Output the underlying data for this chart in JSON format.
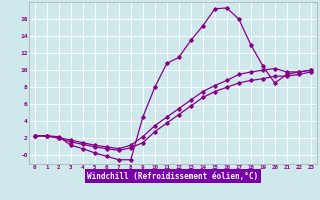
{
  "xlabel": "Windchill (Refroidissement éolien,°C)",
  "background_color": "#cfe8ec",
  "line_color": "#880088",
  "xlabel_bg": "#7700aa",
  "xlim": [
    -0.5,
    23.5
  ],
  "ylim": [
    -1.0,
    18.0
  ],
  "xticks": [
    0,
    1,
    2,
    3,
    4,
    5,
    6,
    7,
    8,
    9,
    10,
    11,
    12,
    13,
    14,
    15,
    16,
    17,
    18,
    19,
    20,
    21,
    22,
    23
  ],
  "yticks": [
    0,
    2,
    4,
    6,
    8,
    10,
    12,
    14,
    16
  ],
  "ytick_labels": [
    "-0",
    "2",
    "4",
    "6",
    "8",
    "10",
    "12",
    "14",
    "16"
  ],
  "curve1_x": [
    0,
    1,
    2,
    3,
    4,
    5,
    6,
    7,
    8,
    9,
    10,
    11,
    12,
    13,
    14,
    15,
    16,
    17,
    18,
    19,
    20,
    21,
    22,
    23
  ],
  "curve1_y": [
    2.3,
    2.3,
    2.2,
    1.2,
    0.8,
    0.3,
    -0.1,
    -0.5,
    -0.5,
    4.5,
    8.0,
    10.8,
    11.5,
    13.5,
    15.2,
    17.2,
    17.3,
    16.0,
    13.0,
    10.5,
    8.5,
    9.5,
    9.8,
    10.0
  ],
  "curve2_x": [
    0,
    1,
    2,
    3,
    4,
    5,
    6,
    7,
    8,
    9,
    10,
    11,
    12,
    13,
    14,
    15,
    16,
    17,
    18,
    19,
    20,
    21,
    22,
    23
  ],
  "curve2_y": [
    2.3,
    2.3,
    2.1,
    1.8,
    1.5,
    1.2,
    1.0,
    0.8,
    1.2,
    2.2,
    3.5,
    4.5,
    5.5,
    6.5,
    7.5,
    8.2,
    8.8,
    9.5,
    9.8,
    10.0,
    10.2,
    9.8,
    9.8,
    10.0
  ],
  "curve3_x": [
    0,
    1,
    2,
    3,
    4,
    5,
    6,
    7,
    8,
    9,
    10,
    11,
    12,
    13,
    14,
    15,
    16,
    17,
    18,
    19,
    20,
    21,
    22,
    23
  ],
  "curve3_y": [
    2.3,
    2.3,
    2.0,
    1.6,
    1.3,
    1.0,
    0.8,
    0.6,
    0.9,
    1.5,
    2.8,
    3.8,
    4.8,
    5.8,
    6.8,
    7.5,
    8.0,
    8.5,
    8.8,
    9.0,
    9.3,
    9.3,
    9.5,
    9.8
  ]
}
